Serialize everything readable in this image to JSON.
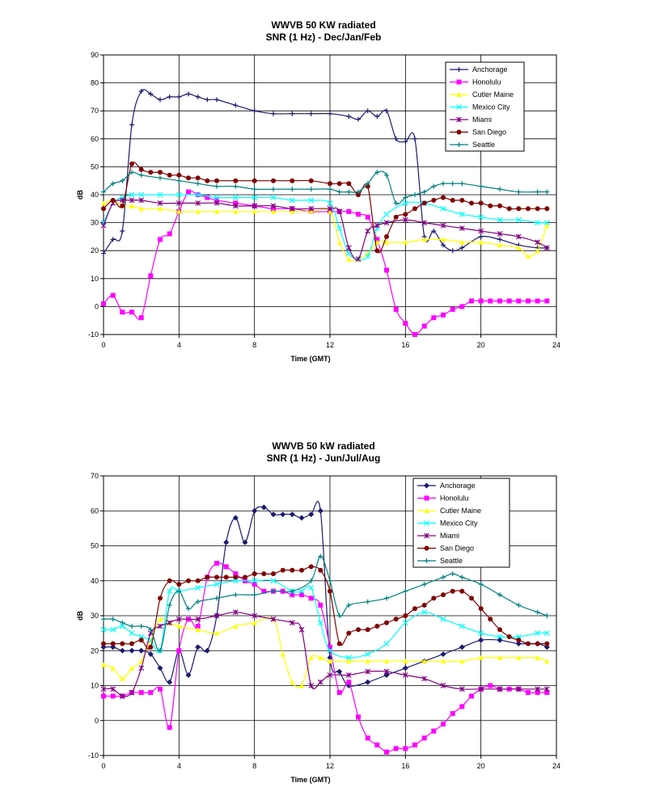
{
  "chart_data": [
    {
      "type": "line",
      "title": "WWVB 50 KW radiated",
      "subtitle": "SNR (1 Hz) - Dec/Jan/Feb",
      "xlabel": "Time (GMT)",
      "ylabel": "dB",
      "xlim": [
        0,
        24
      ],
      "ylim": [
        -10,
        90
      ],
      "xticks": [
        0,
        4,
        8,
        12,
        16,
        20,
        24
      ],
      "yticks": [
        -10,
        0,
        10,
        20,
        30,
        40,
        50,
        60,
        70,
        80,
        90
      ],
      "grid": true,
      "legend_position": "top-right",
      "series": [
        {
          "name": "Anchorage",
          "color": "#1a1a6e",
          "marker": "plus",
          "x": [
            0,
            0.5,
            1,
            1.5,
            2,
            2.5,
            3,
            3.5,
            4,
            4.5,
            5,
            5.5,
            6,
            7,
            8,
            9,
            10,
            11,
            12,
            13,
            13.5,
            14,
            14.5,
            15,
            15.5,
            16,
            16.5,
            17,
            17.5,
            18,
            18.5,
            19,
            20,
            21,
            22,
            23,
            23.5
          ],
          "y": [
            19,
            24,
            27,
            65,
            77,
            76,
            74,
            75,
            75,
            76,
            75,
            74,
            74,
            72,
            70,
            69,
            69,
            69,
            69,
            68,
            67,
            70,
            68,
            70,
            60,
            59,
            60,
            25,
            27,
            22,
            20,
            21,
            25,
            24,
            22,
            21,
            21
          ]
        },
        {
          "name": "Honolulu",
          "color": "#ff00ff",
          "marker": "square",
          "x": [
            0,
            0.5,
            1,
            1.5,
            2,
            2.5,
            3,
            3.5,
            4,
            4.5,
            5,
            5.5,
            6,
            7,
            8,
            9,
            10,
            11,
            12,
            12.5,
            13,
            13.5,
            14,
            14.5,
            15,
            15.5,
            16,
            16.5,
            17,
            17.5,
            18,
            18.5,
            19,
            19.5,
            20,
            20.5,
            21,
            21.5,
            22,
            22.5,
            23,
            23.5
          ],
          "y": [
            1,
            4,
            -2,
            -2,
            -4,
            11,
            24,
            26,
            34,
            41,
            40,
            39,
            38,
            37,
            36,
            35,
            35,
            34,
            34,
            34,
            34,
            33,
            32,
            24,
            13,
            -1,
            -6,
            -10,
            -7,
            -4,
            -3,
            -1,
            0,
            2,
            2,
            2,
            2,
            2,
            2,
            2,
            2,
            2
          ]
        },
        {
          "name": "Cutler Maine",
          "color": "#ffff00",
          "marker": "triangle",
          "x": [
            0,
            0.5,
            1,
            1.5,
            2,
            3,
            4,
            5,
            6,
            7,
            8,
            9,
            10,
            11,
            12,
            12.5,
            13,
            13.5,
            14,
            14.5,
            15,
            16,
            17,
            18,
            19,
            20,
            21,
            22,
            22.5,
            23,
            23.5
          ],
          "y": [
            37,
            38,
            36,
            36,
            35,
            35,
            34,
            34,
            34,
            34,
            34,
            34,
            34,
            34,
            34,
            23,
            17,
            17,
            19,
            23,
            23,
            23,
            24,
            24,
            23,
            23,
            22,
            21,
            18,
            20,
            29
          ]
        },
        {
          "name": "Mexico City",
          "color": "#00ffff",
          "marker": "x",
          "x": [
            0,
            0.5,
            1,
            1.5,
            2,
            3,
            4,
            5,
            6,
            7,
            8,
            9,
            10,
            11,
            12,
            12.5,
            13,
            13.5,
            14,
            14.5,
            15,
            16,
            17,
            18,
            19,
            20,
            21,
            22,
            23,
            23.5
          ],
          "y": [
            30,
            37,
            39,
            40,
            40,
            40,
            40,
            40,
            39,
            39,
            39,
            39,
            38,
            38,
            37,
            28,
            19,
            17,
            18,
            28,
            33,
            37,
            37,
            35,
            33,
            32,
            31,
            31,
            30,
            30
          ]
        },
        {
          "name": "Miami",
          "color": "#800080",
          "marker": "star",
          "x": [
            0,
            0.5,
            1,
            1.5,
            2,
            3,
            4,
            5,
            6,
            7,
            8,
            9,
            10,
            11,
            12,
            12.5,
            13,
            13.5,
            14,
            14.5,
            15,
            16,
            17,
            18,
            19,
            20,
            21,
            22,
            23,
            23.5
          ],
          "y": [
            29,
            37,
            38,
            38,
            38,
            37,
            37,
            37,
            37,
            36,
            36,
            36,
            35,
            35,
            35,
            34,
            21,
            17,
            27,
            29,
            30,
            31,
            30,
            29,
            28,
            27,
            26,
            25,
            23,
            21
          ]
        },
        {
          "name": "San Diego",
          "color": "#800000",
          "marker": "circle",
          "x": [
            0,
            0.5,
            1,
            1.5,
            2,
            2.5,
            3,
            3.5,
            4,
            4.5,
            5,
            5.5,
            6,
            7,
            8,
            9,
            10,
            11,
            12,
            12.5,
            13,
            13.5,
            14,
            14.5,
            15,
            15.5,
            16,
            16.5,
            17,
            17.5,
            18,
            18.5,
            19,
            19.5,
            20,
            20.5,
            21,
            21.5,
            22,
            22.5,
            23,
            23.5
          ],
          "y": [
            35,
            38,
            36,
            51,
            49,
            48,
            48,
            47,
            47,
            46,
            46,
            45,
            45,
            45,
            45,
            45,
            45,
            45,
            44,
            44,
            44,
            40,
            43,
            20,
            25,
            32,
            33,
            35,
            37,
            38,
            39,
            38,
            38,
            37,
            37,
            36,
            36,
            35,
            35,
            35,
            35,
            35
          ]
        },
        {
          "name": "Seattle",
          "color": "#008080",
          "marker": "plus",
          "x": [
            0,
            0.5,
            1,
            1.5,
            2,
            3,
            4,
            5,
            6,
            7,
            8,
            9,
            10,
            11,
            12,
            12.5,
            13,
            13.5,
            14,
            14.5,
            15,
            15.5,
            16,
            16.5,
            17,
            17.5,
            18,
            18.5,
            19,
            20,
            21,
            22,
            23,
            23.5
          ],
          "y": [
            41,
            44,
            45,
            48,
            47,
            46,
            45,
            44,
            43,
            43,
            42,
            42,
            42,
            42,
            42,
            41,
            41,
            41,
            44,
            48,
            47,
            37,
            39,
            40,
            41,
            43,
            44,
            44,
            44,
            43,
            42,
            41,
            41,
            41
          ]
        }
      ]
    },
    {
      "type": "line",
      "title": "WWVB 50 kW radiated",
      "subtitle": "SNR (1 Hz) - Jun/Jul/Aug",
      "xlabel": "Time (GMT)",
      "ylabel": "dB",
      "xlim": [
        0,
        24
      ],
      "ylim": [
        -10,
        70
      ],
      "xticks": [
        0,
        4,
        8,
        12,
        16,
        20,
        24
      ],
      "yticks": [
        -10,
        0,
        10,
        20,
        30,
        40,
        50,
        60,
        70
      ],
      "grid": true,
      "legend_position": "top-right",
      "series": [
        {
          "name": "Anchorage",
          "color": "#1a1a6e",
          "marker": "diamond",
          "x": [
            0,
            0.5,
            1,
            1.5,
            2,
            2.5,
            3,
            3.5,
            4,
            4.5,
            5,
            5.5,
            6,
            6.5,
            7,
            7.5,
            8,
            8.5,
            9,
            9.5,
            10,
            10.5,
            11,
            11.5,
            12,
            12.5,
            13,
            14,
            15,
            16,
            17,
            18,
            19,
            20,
            21,
            22,
            23,
            23.5
          ],
          "y": [
            21,
            21,
            20,
            20,
            20,
            19,
            15,
            11,
            20,
            13,
            21,
            20,
            30,
            51,
            58,
            51,
            60,
            61,
            59,
            59,
            59,
            58,
            59,
            60,
            18,
            14,
            10,
            11,
            13,
            15,
            17,
            19,
            21,
            23,
            23,
            22,
            22,
            21
          ]
        },
        {
          "name": "Honolulu",
          "color": "#ff00ff",
          "marker": "square",
          "x": [
            0,
            0.5,
            1,
            1.5,
            2,
            2.5,
            3,
            3.5,
            4,
            4.5,
            5,
            5.5,
            6,
            6.5,
            7,
            7.5,
            8,
            8.5,
            9,
            9.5,
            10,
            10.5,
            11,
            11.5,
            12,
            12.5,
            13,
            13.5,
            14,
            14.5,
            15,
            15.5,
            16,
            16.5,
            17,
            17.5,
            18,
            18.5,
            19,
            19.5,
            20,
            20.5,
            21,
            21.5,
            22,
            22.5,
            23,
            23.5
          ],
          "y": [
            7,
            7,
            7,
            8,
            8,
            8,
            9,
            -2,
            20,
            29,
            27,
            41,
            45,
            44,
            42,
            40,
            39,
            37,
            37,
            37,
            36,
            36,
            35,
            33,
            21,
            8,
            11,
            1,
            -5,
            -7,
            -9,
            -8,
            -8,
            -7,
            -5,
            -3,
            -1,
            2,
            4,
            7,
            9,
            10,
            9,
            9,
            9,
            8,
            8,
            8
          ]
        },
        {
          "name": "Cutler Maine",
          "color": "#ffff00",
          "marker": "triangle",
          "x": [
            0,
            0.5,
            1,
            1.5,
            2,
            2.5,
            3,
            3.5,
            4,
            5,
            6,
            7,
            8,
            9,
            9.5,
            10,
            10.5,
            11,
            11.5,
            12,
            13,
            14,
            15,
            16,
            17,
            18,
            19,
            20,
            21,
            22,
            23,
            23.5
          ],
          "y": [
            16,
            15,
            12,
            15,
            17,
            23,
            29,
            28,
            27,
            26,
            25,
            27,
            28,
            29,
            19,
            11,
            10,
            18,
            18,
            17,
            17,
            17,
            17,
            17,
            17,
            17,
            17,
            18,
            18,
            18,
            18,
            17
          ]
        },
        {
          "name": "Mexico City",
          "color": "#00ffff",
          "marker": "x",
          "x": [
            0,
            0.5,
            1,
            1.5,
            2,
            2.5,
            3,
            3.5,
            4,
            5,
            6,
            7,
            8,
            9,
            10,
            10.5,
            11,
            11.5,
            12,
            13,
            14,
            15,
            16,
            17,
            18,
            19,
            20,
            21,
            22,
            23,
            23.5
          ],
          "y": [
            26,
            26,
            27,
            25,
            24,
            23,
            20,
            37,
            37,
            38,
            39,
            40,
            40,
            40,
            37,
            37,
            38,
            28,
            20,
            18,
            19,
            22,
            28,
            31,
            29,
            27,
            25,
            24,
            24,
            25,
            25
          ]
        },
        {
          "name": "Miami",
          "color": "#800080",
          "marker": "star",
          "x": [
            0,
            0.5,
            1,
            1.5,
            2,
            2.5,
            3,
            3.5,
            4,
            5,
            6,
            7,
            8,
            9,
            10,
            10.5,
            11,
            11.5,
            12,
            13,
            14,
            15,
            16,
            17,
            18,
            19,
            20,
            21,
            22,
            23,
            23.5
          ],
          "y": [
            9,
            9,
            7,
            8,
            15,
            25,
            27,
            28,
            29,
            29,
            30,
            31,
            30,
            29,
            28,
            26,
            10,
            11,
            13,
            13,
            14,
            14,
            13,
            12,
            10,
            9,
            9,
            9,
            9,
            9,
            9
          ]
        },
        {
          "name": "San Diego",
          "color": "#800000",
          "marker": "circle",
          "x": [
            0,
            0.5,
            1,
            1.5,
            2,
            2.5,
            3,
            3.5,
            4,
            4.5,
            5,
            5.5,
            6,
            6.5,
            7,
            7.5,
            8,
            8.5,
            9,
            9.5,
            10,
            10.5,
            11,
            11.5,
            12,
            12.5,
            13,
            13.5,
            14,
            14.5,
            15,
            15.5,
            16,
            16.5,
            17,
            17.5,
            18,
            18.5,
            19,
            19.5,
            20,
            20.5,
            21,
            21.5,
            22,
            22.5,
            23,
            23.5
          ],
          "y": [
            22,
            22,
            22,
            22,
            23,
            21,
            35,
            40,
            39,
            40,
            40,
            41,
            41,
            41,
            41,
            41,
            42,
            42,
            42,
            43,
            43,
            43,
            44,
            43,
            37,
            22,
            25,
            26,
            26,
            27,
            28,
            29,
            30,
            32,
            33,
            35,
            36,
            37,
            37,
            35,
            32,
            29,
            26,
            24,
            23,
            22,
            22,
            22
          ]
        },
        {
          "name": "Seattle",
          "color": "#008080",
          "marker": "plus",
          "x": [
            0,
            0.5,
            1,
            1.5,
            2,
            2.5,
            3,
            3.5,
            4,
            4.5,
            5,
            6,
            7,
            8,
            9,
            10,
            11,
            11.5,
            12,
            12.5,
            13,
            14,
            15,
            16,
            17,
            18,
            18.5,
            19,
            20,
            21,
            22,
            23,
            23.5
          ],
          "y": [
            29,
            29,
            28,
            27,
            27,
            26,
            20,
            33,
            37,
            32,
            34,
            35,
            36,
            36,
            37,
            37,
            40,
            47,
            40,
            30,
            33,
            34,
            35,
            37,
            39,
            41,
            42,
            41,
            39,
            36,
            33,
            31,
            30
          ]
        }
      ]
    }
  ]
}
